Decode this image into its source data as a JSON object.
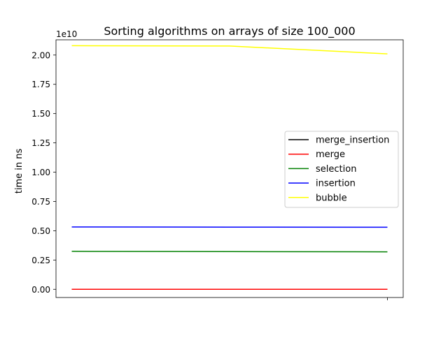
{
  "chart_data": {
    "type": "line",
    "title": "Sorting algorithms on arrays of size 100_000",
    "xlabel": "",
    "ylabel": "time in ns",
    "offset_text": "1e10",
    "y_scale_factor": 10000000000,
    "ylim": [
      -0.07,
      2.13
    ],
    "yticks": [
      0.0,
      0.25,
      0.5,
      0.75,
      1.0,
      1.25,
      1.5,
      1.75,
      2.0
    ],
    "ytick_labels": [
      "0.00",
      "0.25",
      "0.50",
      "0.75",
      "1.00",
      "1.25",
      "1.50",
      "1.75",
      "2.00"
    ],
    "xlim": [
      -0.05,
      1.05
    ],
    "xticks": [
      1.0
    ],
    "xtick_labels": [
      ""
    ],
    "x": [
      0.0,
      0.5,
      1.0
    ],
    "grid": false,
    "legend": "center-right",
    "series": [
      {
        "name": "merge_insertion",
        "color": "#000000",
        "values": [
          0.003,
          0.003,
          0.003
        ]
      },
      {
        "name": "merge",
        "color": "#ff0000",
        "values": [
          0.003,
          0.003,
          0.003
        ]
      },
      {
        "name": "selection",
        "color": "#008000",
        "values": [
          3.24,
          3.22,
          3.2
        ]
      },
      {
        "name": "insertion",
        "color": "#0000ff",
        "values": [
          5.32,
          5.31,
          5.3
        ]
      },
      {
        "name": "bubble",
        "color": "#ffff00",
        "values": [
          20.8,
          20.77,
          20.1
        ]
      }
    ]
  }
}
